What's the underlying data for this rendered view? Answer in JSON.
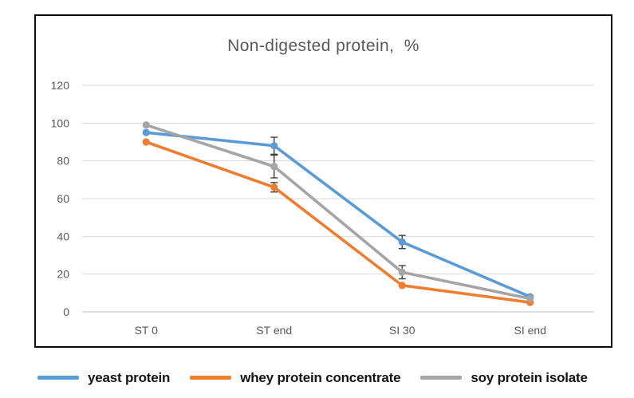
{
  "figure": {
    "background": "#ffffff",
    "border_color": "#0d0d0d"
  },
  "chart_data": {
    "type": "line",
    "title": "Non-digested protein,  %",
    "categories": [
      "ST 0",
      "ST end",
      "SI 30",
      "SI end"
    ],
    "series": [
      {
        "name": "yeast protein",
        "color": "#5B9BD5",
        "values": [
          95,
          88,
          37,
          8
        ],
        "error": [
          0,
          4.5,
          3.5,
          0
        ]
      },
      {
        "name": "whey protein concentrate",
        "color": "#ED7D31",
        "values": [
          90,
          66,
          14,
          5
        ],
        "error": [
          0,
          2.5,
          0,
          0
        ]
      },
      {
        "name": "soy protein isolate",
        "color": "#A5A5A5",
        "values": [
          99,
          77,
          21,
          7
        ],
        "error": [
          0,
          6,
          3.5,
          0
        ]
      }
    ],
    "ylim": [
      0,
      120
    ],
    "yticks": [
      0,
      20,
      40,
      60,
      80,
      100,
      120
    ],
    "grid": true,
    "legend_position": "bottom",
    "styles": {
      "gridline_color": "#D9D9D9",
      "axis_line_color": "#BFBFBF",
      "tick_label_color": "#595959",
      "title_color": "#595959",
      "error_bar_color": "#404040"
    }
  }
}
